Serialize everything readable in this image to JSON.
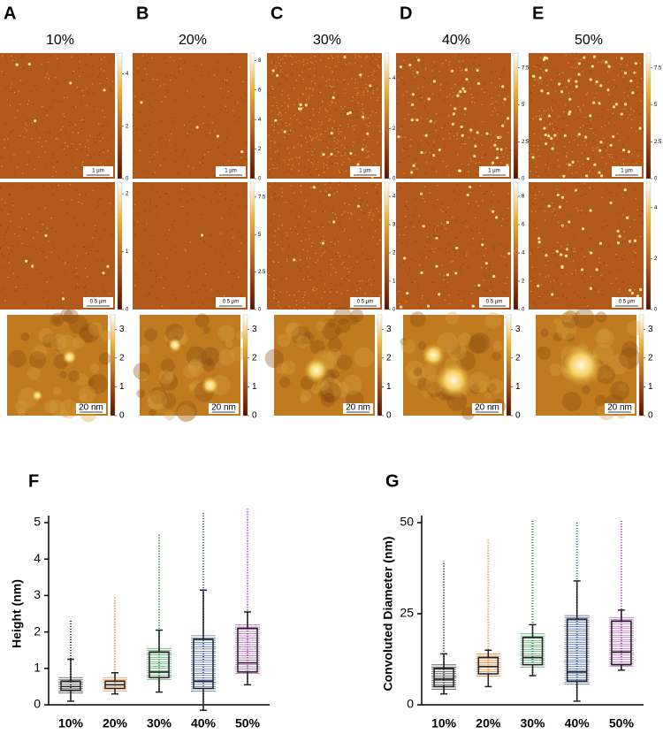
{
  "panels": {
    "letters": [
      "A",
      "B",
      "C",
      "D",
      "E"
    ],
    "concentrations": [
      "10%",
      "20%",
      "30%",
      "40%",
      "50%"
    ],
    "rows": [
      {
        "scale_bar": "1 µm",
        "colorbar_lims": [
          [
            0,
            4.8
          ],
          [
            0,
            8.5
          ],
          [
            0,
            5
          ],
          [
            0,
            8.5
          ],
          [
            0,
            8.5
          ]
        ],
        "colorbar_ticks": [
          [
            0,
            2,
            4
          ],
          [
            0,
            2,
            4,
            6,
            8
          ],
          [
            0,
            2,
            4
          ],
          [
            0,
            2.5,
            5,
            7.5
          ],
          [
            0,
            2.5,
            5,
            7.5
          ]
        ]
      },
      {
        "scale_bar": "0.5 µm",
        "colorbar_lims": [
          [
            0,
            2.2
          ],
          [
            0,
            8.5
          ],
          [
            0,
            4.5
          ],
          [
            0,
            9
          ],
          [
            0,
            5
          ]
        ],
        "colorbar_ticks": [
          [
            0,
            1,
            2
          ],
          [
            0,
            2.5,
            5,
            7.5
          ],
          [
            0,
            1,
            2,
            3,
            4
          ],
          [
            0,
            2,
            4,
            6,
            8
          ],
          [
            0,
            2,
            4
          ]
        ]
      },
      {
        "scale_bar": "20 nm",
        "colorbar_lims": [
          [
            0,
            3.5
          ],
          [
            0,
            3.5
          ],
          [
            0,
            3.5
          ],
          [
            0,
            3.5
          ],
          [
            0,
            3.5
          ]
        ],
        "colorbar_ticks": [
          [
            0,
            1,
            2,
            3
          ],
          [
            0,
            1,
            2,
            3
          ],
          [
            0,
            1,
            2,
            3
          ],
          [
            0,
            1,
            2,
            3
          ],
          [
            0,
            1,
            2,
            3
          ]
        ]
      }
    ]
  },
  "chart_data": [
    {
      "type": "box",
      "panel_label": "F",
      "ylabel": "Height (nm)",
      "categories": [
        "10%",
        "20%",
        "30%",
        "40%",
        "50%"
      ],
      "ylim": [
        0,
        5
      ],
      "yticks": [
        0,
        1,
        2,
        3,
        4,
        5
      ],
      "boxes": [
        {
          "color": "#222222",
          "whisker_low": 0.1,
          "q1": 0.4,
          "median": 0.5,
          "q3": 0.65,
          "whisker_high": 1.25,
          "points_max": 2.35
        },
        {
          "color": "#e8761c",
          "whisker_low": 0.3,
          "q1": 0.45,
          "median": 0.55,
          "q3": 0.65,
          "whisker_high": 0.88,
          "points_max": 2.95
        },
        {
          "color": "#1a8a3a",
          "whisker_low": 0.35,
          "q1": 0.75,
          "median": 0.9,
          "q3": 1.45,
          "whisker_high": 2.05,
          "points_max": 4.7
        },
        {
          "color": "#2c4fa0",
          "whisker_low": -0.15,
          "q1": 0.45,
          "median": 0.65,
          "q3": 1.8,
          "whisker_high": 3.15,
          "points_max": 5.3
        },
        {
          "color": "#a23aa8",
          "whisker_low": 0.55,
          "q1": 0.9,
          "median": 1.15,
          "q3": 2.1,
          "whisker_high": 2.55,
          "points_max": 5.4
        }
      ]
    },
    {
      "type": "box",
      "panel_label": "G",
      "ylabel": "Convoluted Diameter (nm)",
      "categories": [
        "10%",
        "20%",
        "30%",
        "40%",
        "50%"
      ],
      "ylim": [
        0,
        50
      ],
      "yticks": [
        0,
        25,
        50
      ],
      "boxes": [
        {
          "color": "#222222",
          "whisker_low": 3,
          "q1": 5,
          "median": 7,
          "q3": 10,
          "whisker_high": 14,
          "points_max": 39.5
        },
        {
          "color": "#e8761c",
          "whisker_low": 5,
          "q1": 8.5,
          "median": 10.5,
          "q3": 13,
          "whisker_high": 15,
          "points_max": 45.5
        },
        {
          "color": "#1a8a3a",
          "whisker_low": 8,
          "q1": 11,
          "median": 13,
          "q3": 18.5,
          "whisker_high": 22,
          "points_max": 50.5
        },
        {
          "color": "#2c4fa0",
          "whisker_low": 1,
          "q1": 6.5,
          "median": 9,
          "q3": 23.5,
          "whisker_high": 34,
          "points_max": 50.5
        },
        {
          "color": "#a23aa8",
          "whisker_low": 9.5,
          "q1": 11,
          "median": 14.5,
          "q3": 23,
          "whisker_high": 26,
          "points_max": 50.5
        }
      ]
    }
  ]
}
